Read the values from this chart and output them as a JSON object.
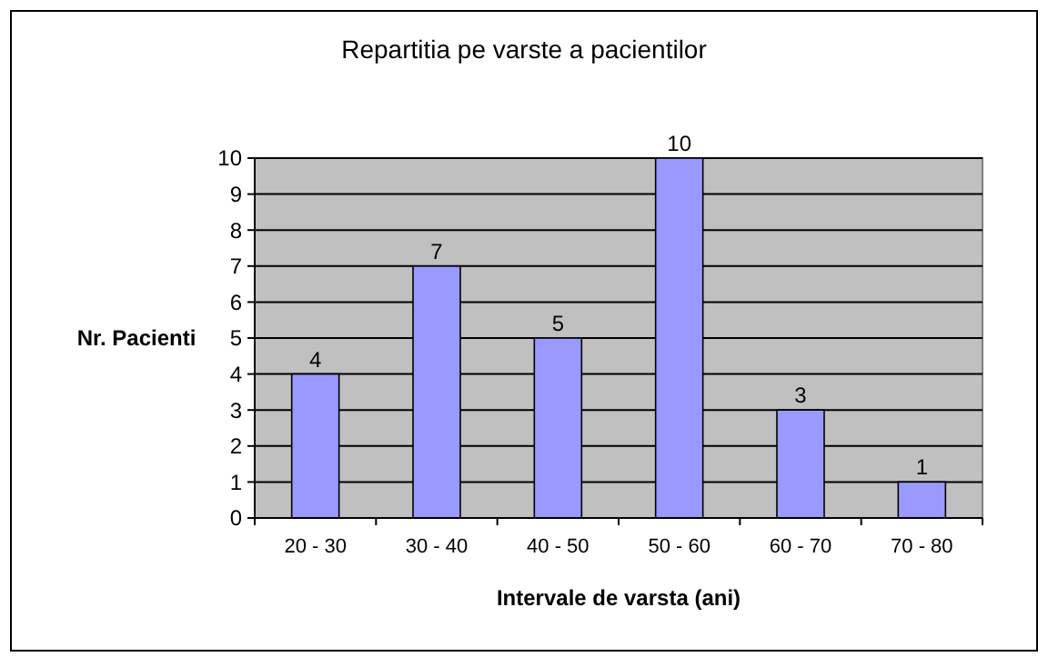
{
  "chart_data": {
    "type": "bar",
    "title": "Repartitia pe varste a pacientilor",
    "xlabel": "Intervale de varsta (ani)",
    "ylabel": "Nr. Pacienti",
    "categories": [
      "20 - 30",
      "30 - 40",
      "40 - 50",
      "50 - 60",
      "60 - 70",
      "70 - 80"
    ],
    "values": [
      4,
      7,
      5,
      10,
      3,
      1
    ],
    "color": "#9999ff",
    "ylim": [
      0,
      10
    ],
    "yticks": [
      0,
      1,
      2,
      3,
      4,
      5,
      6,
      7,
      8,
      9,
      10
    ],
    "grid": "y",
    "data_labels": true
  }
}
